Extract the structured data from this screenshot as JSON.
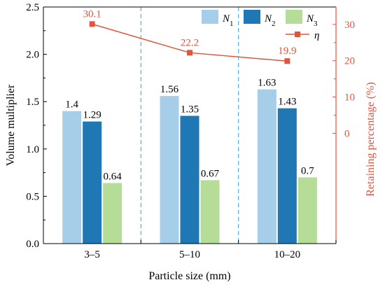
{
  "chart_data": {
    "type": "bar",
    "categories": [
      "3–5",
      "5–10",
      "10–20"
    ],
    "series": [
      {
        "name": "N",
        "subscript": "1",
        "values": [
          1.4,
          1.56,
          1.63
        ],
        "color": "#a6cee8"
      },
      {
        "name": "N",
        "subscript": "2",
        "values": [
          1.29,
          1.35,
          1.43
        ],
        "color": "#1f77b4"
      },
      {
        "name": "N",
        "subscript": "3",
        "values": [
          0.64,
          0.67,
          0.7
        ],
        "color": "#b6dd97"
      }
    ],
    "bar_labels": [
      [
        "1.4",
        "1.29",
        "0.64"
      ],
      [
        "1.56",
        "1.35",
        "0.67"
      ],
      [
        "1.63",
        "1.43",
        "0.7"
      ]
    ],
    "line_series": {
      "name": "η",
      "values": [
        30.1,
        22.2,
        19.9
      ],
      "labels": [
        "30.1",
        "22.2",
        "19.9"
      ],
      "color": "#e2543c",
      "axis": "right"
    },
    "xlabel": "Particle size (mm)",
    "ylabel": "Volume multiplier",
    "y2label": "Retaining percentage (%)",
    "ylim": [
      0,
      2.5
    ],
    "yticks": [
      "0.0",
      "0.5",
      "1.0",
      "1.5",
      "2.0",
      "2.5"
    ],
    "y2lim": [
      -30.4,
      34.8
    ],
    "y2ticks": [
      "0",
      "10",
      "20",
      "30"
    ],
    "y2_minor": [
      5,
      15,
      25
    ],
    "separators_color": "#5aaee0",
    "legend_position": "top-right"
  }
}
